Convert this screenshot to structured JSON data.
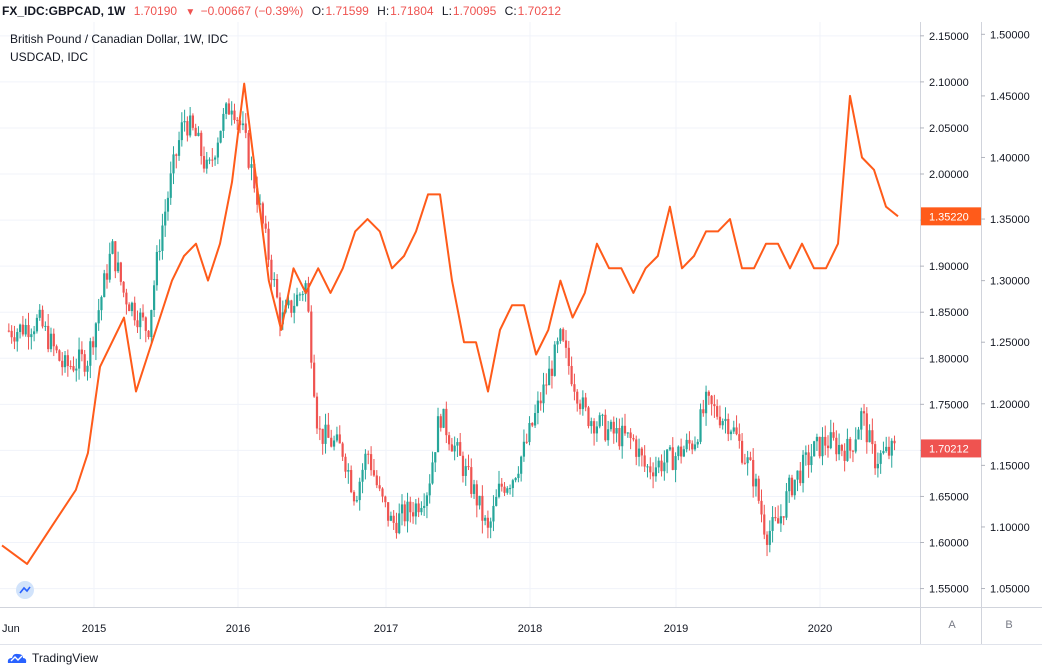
{
  "header": {
    "symbol": "FX_IDC:GBPCAD, 1W",
    "last": "1.70190",
    "change": "−0.00667 (−0.39%)",
    "open_label": "O:",
    "open": "1.71599",
    "high_label": "H:",
    "high": "1.71804",
    "low_label": "L:",
    "low": "1.70095",
    "close_label": "C:",
    "close": "1.70212"
  },
  "legend": {
    "main": "British Pound / Canadian Dollar, 1W, IDC",
    "compare": "USDCAD, IDC"
  },
  "footer": {
    "brand": "TradingView"
  },
  "axis_buttons": {
    "a": "A",
    "b": "B"
  },
  "colors": {
    "up": "#26a69a",
    "down": "#ef5350",
    "line": "#ff5b1a",
    "grid": "#f0f3fa",
    "axis_text": "#131722",
    "last_label": "#ef5350",
    "line_label": "#ff5b1a"
  },
  "chart_data": {
    "type": "candlestick+line",
    "x_ticks": [
      "Jun",
      "2015",
      "2016",
      "2017",
      "2018",
      "2019",
      "2020"
    ],
    "series": [
      {
        "name": "British Pound / Canadian Dollar, 1W, IDC",
        "axis": "primary",
        "ylim": [
          1.53,
          2.165
        ],
        "y_ticks": [
          "2.15000",
          "2.10000",
          "2.05000",
          "2.00000",
          "1.95000",
          "1.90000",
          "1.85000",
          "1.80000",
          "1.75000",
          "1.70000",
          "1.65000",
          "1.60000",
          "1.55000"
        ],
        "last_label": "1.70212",
        "anchors": [
          [
            "2014-06",
            1.83
          ],
          [
            "2014-08",
            1.84
          ],
          [
            "2014-10",
            1.79
          ],
          [
            "2014-12",
            1.8
          ],
          [
            "2015-01",
            1.86
          ],
          [
            "2015-02",
            1.92
          ],
          [
            "2015-03",
            1.87
          ],
          [
            "2015-05",
            1.83
          ],
          [
            "2015-06",
            1.93
          ],
          [
            "2015-07",
            2.0
          ],
          [
            "2015-08",
            2.06
          ],
          [
            "2015-09",
            2.04
          ],
          [
            "2015-10",
            2.0
          ],
          [
            "2015-11",
            2.05
          ],
          [
            "2015-12",
            2.08
          ],
          [
            "2016-01",
            2.04
          ],
          [
            "2016-02",
            1.98
          ],
          [
            "2016-04",
            1.84
          ],
          [
            "2016-05",
            1.86
          ],
          [
            "2016-06",
            1.88
          ],
          [
            "2016-07",
            1.72
          ],
          [
            "2016-09",
            1.7
          ],
          [
            "2016-10",
            1.65
          ],
          [
            "2016-11",
            1.7
          ],
          [
            "2016-12",
            1.65
          ],
          [
            "2017-01",
            1.62
          ],
          [
            "2017-03",
            1.64
          ],
          [
            "2017-04",
            1.66
          ],
          [
            "2017-05",
            1.74
          ],
          [
            "2017-06",
            1.71
          ],
          [
            "2017-08",
            1.65
          ],
          [
            "2017-09",
            1.61
          ],
          [
            "2017-10",
            1.66
          ],
          [
            "2017-11",
            1.67
          ],
          [
            "2017-12",
            1.7
          ],
          [
            "2018-01",
            1.74
          ],
          [
            "2018-03",
            1.82
          ],
          [
            "2018-05",
            1.74
          ],
          [
            "2018-07",
            1.72
          ],
          [
            "2018-09",
            1.71
          ],
          [
            "2018-10",
            1.68
          ],
          [
            "2018-12",
            1.69
          ],
          [
            "2019-02",
            1.71
          ],
          [
            "2019-03",
            1.75
          ],
          [
            "2019-05",
            1.73
          ],
          [
            "2019-07",
            1.67
          ],
          [
            "2019-08",
            1.61
          ],
          [
            "2019-09",
            1.62
          ],
          [
            "2019-10",
            1.66
          ],
          [
            "2019-12",
            1.7
          ],
          [
            "2020-01",
            1.71
          ],
          [
            "2020-03",
            1.7
          ],
          [
            "2020-04",
            1.74
          ],
          [
            "2020-05",
            1.69
          ],
          [
            "2020-07",
            1.70212
          ]
        ]
      },
      {
        "name": "USDCAD, IDC",
        "axis": "secondary",
        "ylim": [
          1.035,
          1.51
        ],
        "y_ticks": [
          "1.50000",
          "1.45000",
          "1.40000",
          "1.35000",
          "1.30000",
          "1.25000",
          "1.20000",
          "1.15000",
          "1.10000",
          "1.05000"
        ],
        "last_label": "1.35220",
        "points": [
          [
            "2014-06",
            1.085
          ],
          [
            "2014-07",
            1.07
          ],
          [
            "2014-09",
            1.1
          ],
          [
            "2014-11",
            1.13
          ],
          [
            "2014-12",
            1.16
          ],
          [
            "2015-01",
            1.23
          ],
          [
            "2015-02",
            1.25
          ],
          [
            "2015-03",
            1.27
          ],
          [
            "2015-04",
            1.21
          ],
          [
            "2015-05",
            1.24
          ],
          [
            "2015-07",
            1.3
          ],
          [
            "2015-08",
            1.32
          ],
          [
            "2015-09",
            1.33
          ],
          [
            "2015-10",
            1.3
          ],
          [
            "2015-11",
            1.33
          ],
          [
            "2015-12",
            1.38
          ],
          [
            "2016-01",
            1.46
          ],
          [
            "2016-02",
            1.38
          ],
          [
            "2016-03",
            1.3
          ],
          [
            "2016-04",
            1.26
          ],
          [
            "2016-05",
            1.31
          ],
          [
            "2016-06",
            1.29
          ],
          [
            "2016-07",
            1.31
          ],
          [
            "2016-08",
            1.29
          ],
          [
            "2016-09",
            1.31
          ],
          [
            "2016-10",
            1.34
          ],
          [
            "2016-11",
            1.35
          ],
          [
            "2016-12",
            1.34
          ],
          [
            "2017-01",
            1.31
          ],
          [
            "2017-02",
            1.32
          ],
          [
            "2017-03",
            1.34
          ],
          [
            "2017-04",
            1.37
          ],
          [
            "2017-05",
            1.37
          ],
          [
            "2017-06",
            1.3
          ],
          [
            "2017-07",
            1.25
          ],
          [
            "2017-08",
            1.25
          ],
          [
            "2017-09",
            1.21
          ],
          [
            "2017-10",
            1.26
          ],
          [
            "2017-11",
            1.28
          ],
          [
            "2017-12",
            1.28
          ],
          [
            "2018-01",
            1.24
          ],
          [
            "2018-02",
            1.26
          ],
          [
            "2018-03",
            1.3
          ],
          [
            "2018-04",
            1.27
          ],
          [
            "2018-05",
            1.29
          ],
          [
            "2018-06",
            1.33
          ],
          [
            "2018-07",
            1.31
          ],
          [
            "2018-08",
            1.31
          ],
          [
            "2018-09",
            1.29
          ],
          [
            "2018-10",
            1.31
          ],
          [
            "2018-11",
            1.32
          ],
          [
            "2018-12",
            1.36
          ],
          [
            "2019-01",
            1.31
          ],
          [
            "2019-02",
            1.32
          ],
          [
            "2019-03",
            1.34
          ],
          [
            "2019-04",
            1.34
          ],
          [
            "2019-05",
            1.35
          ],
          [
            "2019-06",
            1.31
          ],
          [
            "2019-07",
            1.31
          ],
          [
            "2019-08",
            1.33
          ],
          [
            "2019-09",
            1.33
          ],
          [
            "2019-10",
            1.31
          ],
          [
            "2019-11",
            1.33
          ],
          [
            "2019-12",
            1.31
          ],
          [
            "2020-01",
            1.31
          ],
          [
            "2020-02",
            1.33
          ],
          [
            "2020-03",
            1.45
          ],
          [
            "2020-04",
            1.4
          ],
          [
            "2020-05",
            1.39
          ],
          [
            "2020-06",
            1.36
          ],
          [
            "2020-07",
            1.3522
          ]
        ]
      }
    ],
    "grid": true,
    "legend_position": "top-left"
  }
}
